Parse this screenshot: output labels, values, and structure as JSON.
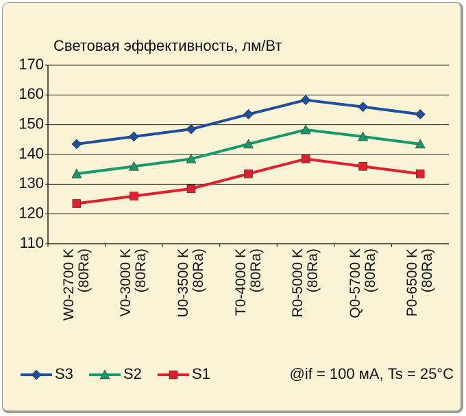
{
  "chart_data": {
    "type": "line",
    "title": "Световая эффективность, лм/Вт",
    "categories": [
      "W0-2700 K\n(80Ra)",
      "V0-3000 K\n(80Ra)",
      "U0-3500 K\n(80Ra)",
      "T0-4000 K\n(80Ra)",
      "R0-5000 K\n(80Ra)",
      "Q0-5700 K\n(80Ra)",
      "P0-6500 K\n(80Ra)"
    ],
    "series": [
      {
        "name": "S3",
        "color": "#1d4f9e",
        "marker": "diamond",
        "values": [
          143.5,
          146,
          148.5,
          153.5,
          158.3,
          156,
          153.5
        ]
      },
      {
        "name": "S2",
        "color": "#169a6a",
        "marker": "triangle",
        "values": [
          133.5,
          136,
          138.5,
          143.5,
          148.3,
          146,
          143.5
        ]
      },
      {
        "name": "S1",
        "color": "#e0202c",
        "marker": "square",
        "values": [
          123.5,
          126,
          128.5,
          133.5,
          138.5,
          136,
          133.5
        ]
      }
    ],
    "ylim": [
      110,
      170
    ],
    "yticks": [
      110,
      120,
      130,
      140,
      150,
      160,
      170
    ],
    "grid": true,
    "annotation": "@if = 100 мА, Ts = 25°C"
  }
}
